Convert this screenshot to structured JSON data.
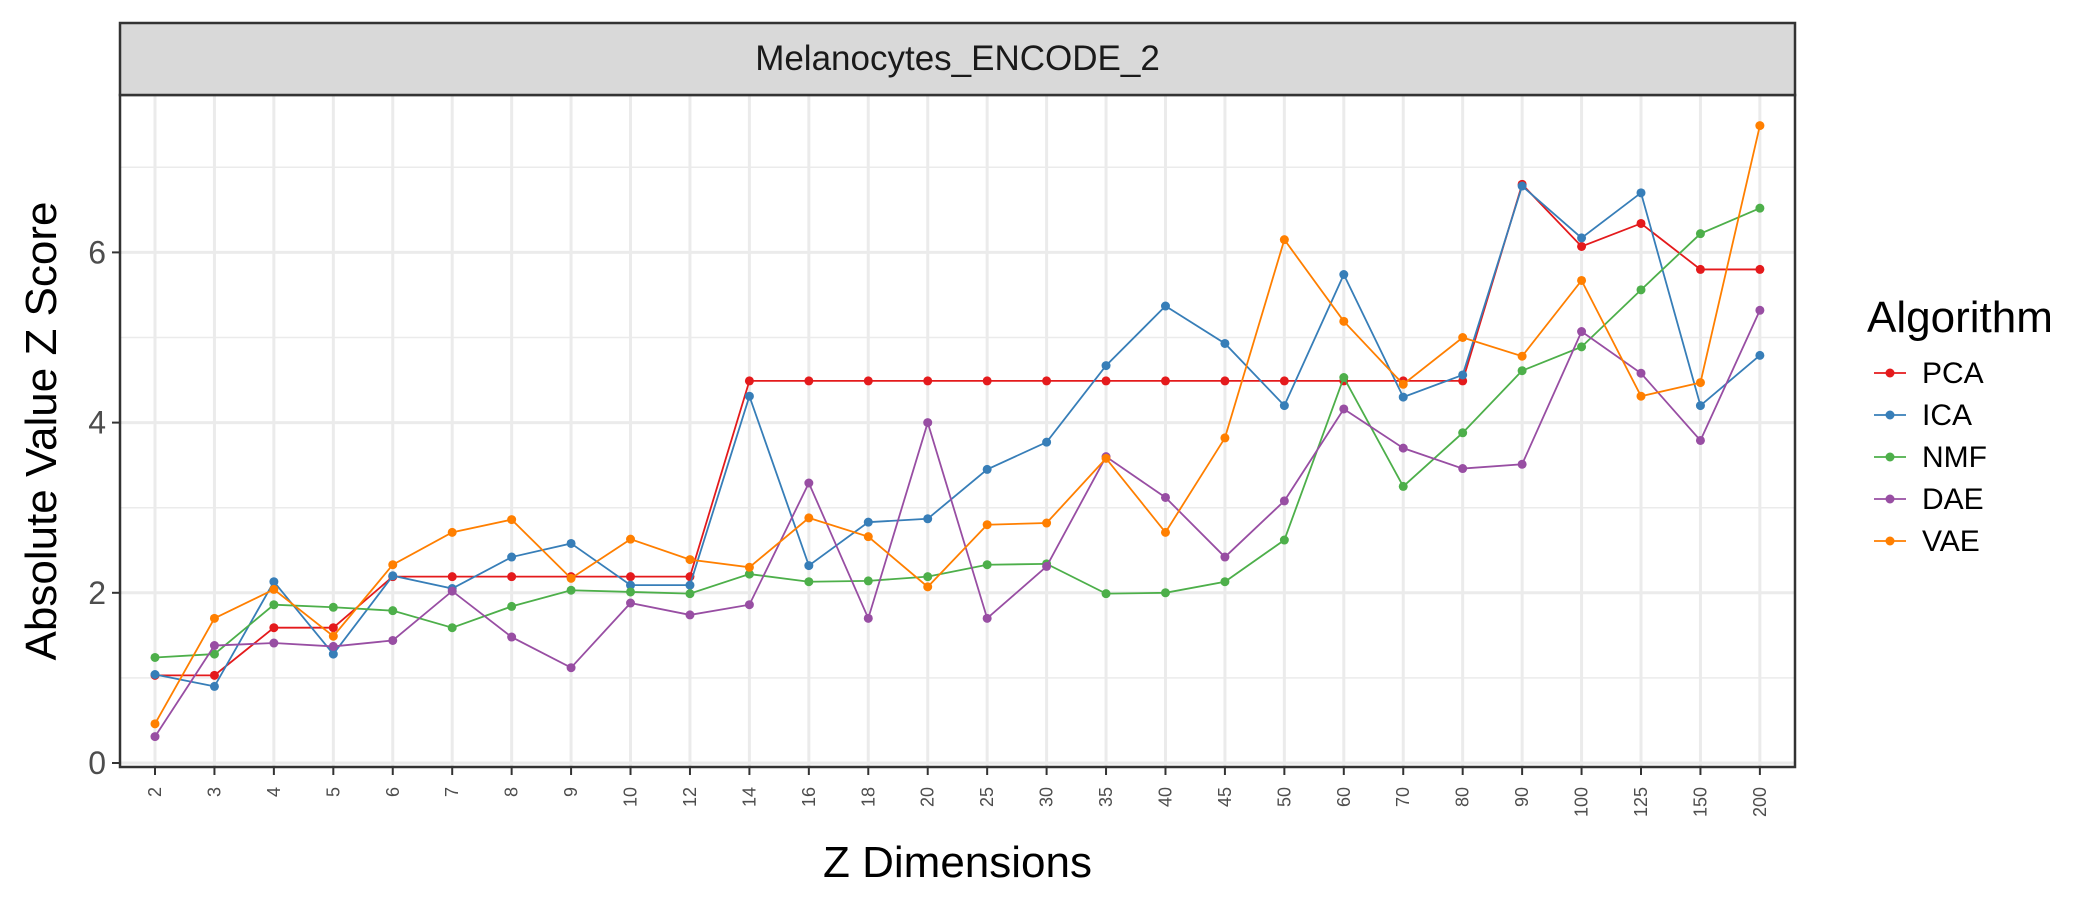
{
  "chart_data": {
    "type": "line",
    "title": "Melanocytes_ENCODE_2",
    "xlabel": "Z Dimensions",
    "ylabel": "Absolute Value Z Score",
    "categories": [
      "2",
      "3",
      "4",
      "5",
      "6",
      "7",
      "8",
      "9",
      "10",
      "12",
      "14",
      "16",
      "18",
      "20",
      "25",
      "30",
      "35",
      "40",
      "45",
      "50",
      "60",
      "70",
      "80",
      "90",
      "100",
      "125",
      "150",
      "200"
    ],
    "ylim": [
      -0.1,
      7.8
    ],
    "yticks": [
      0,
      2,
      4,
      6
    ],
    "ytick_labels": [
      "0",
      "2",
      "4",
      "6"
    ],
    "grid": true,
    "legend": {
      "title": "Algorithm",
      "position": "right"
    },
    "series": [
      {
        "name": "PCA",
        "color": "#E41A1C",
        "values": [
          1.03,
          1.03,
          1.59,
          1.59,
          2.19,
          2.19,
          2.19,
          2.19,
          2.19,
          2.19,
          4.49,
          4.49,
          4.49,
          4.49,
          4.49,
          4.49,
          4.49,
          4.49,
          4.49,
          4.49,
          4.49,
          4.49,
          4.49,
          6.8,
          6.07,
          6.34,
          5.8,
          5.8
        ]
      },
      {
        "name": "ICA",
        "color": "#377EB8",
        "values": [
          1.04,
          0.9,
          2.13,
          1.28,
          2.2,
          2.05,
          2.42,
          2.58,
          2.09,
          2.09,
          4.31,
          2.32,
          2.83,
          2.87,
          3.45,
          3.77,
          4.67,
          5.37,
          4.93,
          4.2,
          5.74,
          4.3,
          4.56,
          6.78,
          6.17,
          6.7,
          4.2,
          4.79
        ]
      },
      {
        "name": "NMF",
        "color": "#4DAF4A",
        "values": [
          1.24,
          1.28,
          1.86,
          1.83,
          1.79,
          1.59,
          1.84,
          2.03,
          2.01,
          1.99,
          2.22,
          2.13,
          2.14,
          2.19,
          2.33,
          2.34,
          1.99,
          2.0,
          2.13,
          2.62,
          4.53,
          3.25,
          3.88,
          4.61,
          4.89,
          5.56,
          6.22,
          6.52
        ]
      },
      {
        "name": "DAE",
        "color": "#984EA3",
        "values": [
          0.31,
          1.38,
          1.41,
          1.37,
          1.44,
          2.02,
          1.48,
          1.12,
          1.88,
          1.74,
          1.86,
          3.29,
          1.7,
          4.0,
          1.7,
          2.31,
          3.6,
          3.12,
          2.42,
          3.08,
          4.16,
          3.7,
          3.46,
          3.51,
          5.07,
          4.58,
          3.79,
          5.32
        ]
      },
      {
        "name": "VAE",
        "color": "#FF7F00",
        "values": [
          0.46,
          1.7,
          2.04,
          1.49,
          2.33,
          2.71,
          2.86,
          2.17,
          2.63,
          2.39,
          2.3,
          2.88,
          2.66,
          2.07,
          2.8,
          2.82,
          3.58,
          2.71,
          3.82,
          6.15,
          5.19,
          4.45,
          5.0,
          4.78,
          5.67,
          4.31,
          4.47,
          7.49
        ]
      }
    ]
  }
}
